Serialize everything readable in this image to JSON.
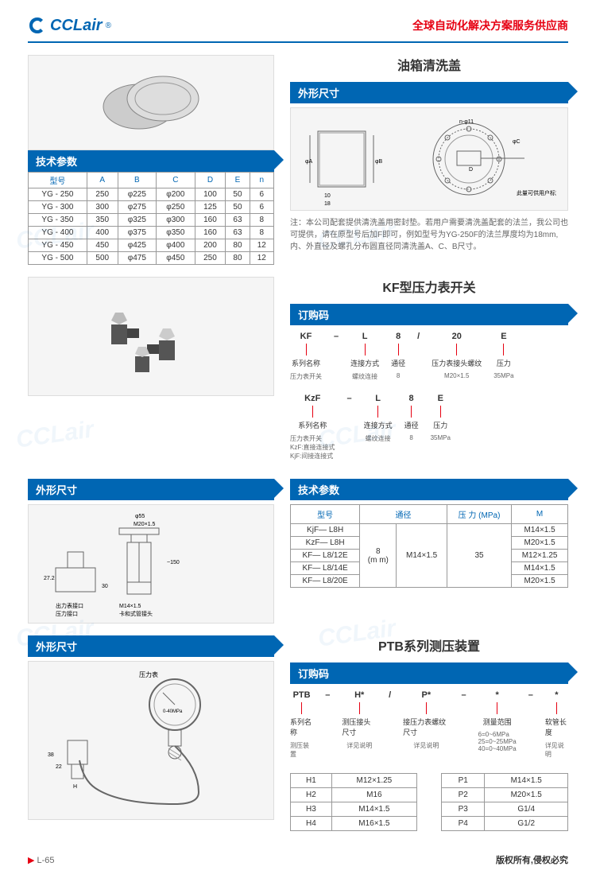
{
  "header": {
    "logo_text": "CCLair",
    "tagline": "全球自动化解决方案服务供应商"
  },
  "section1": {
    "title": "油箱清洗盖",
    "dim_header": "外形尺寸",
    "tech_header": "技术参数",
    "table": {
      "headers": [
        "型号",
        "A",
        "B",
        "C",
        "D",
        "E",
        "n"
      ],
      "rows": [
        [
          "YG - 250",
          "250",
          "φ225",
          "φ200",
          "100",
          "50",
          "6"
        ],
        [
          "YG - 300",
          "300",
          "φ275",
          "φ250",
          "125",
          "50",
          "6"
        ],
        [
          "YG - 350",
          "350",
          "φ325",
          "φ300",
          "160",
          "63",
          "8"
        ],
        [
          "YG - 400",
          "400",
          "φ375",
          "φ350",
          "160",
          "63",
          "8"
        ],
        [
          "YG - 450",
          "450",
          "φ425",
          "φ400",
          "200",
          "80",
          "12"
        ],
        [
          "YG - 500",
          "500",
          "φ475",
          "φ450",
          "250",
          "80",
          "12"
        ]
      ]
    },
    "note": "注：本公司配套提供清洗盖用密封垫。若用户需要清洗盖配套的法兰，我公司也可提供，请在原型号后加F即可，例如型号为YG-250F的法兰厚度均为18mm,内、外直径及螺孔分布圆直径同清洗盖A、C、B尺寸。"
  },
  "section2": {
    "title": "KF型压力表开关",
    "order_header": "订购码",
    "dim_header": "外形尺寸",
    "tech_header": "技术参数",
    "order1": {
      "cols": [
        "KF",
        "–",
        "L",
        "8",
        "/",
        "20",
        "E"
      ],
      "labels": [
        "系列名称",
        "",
        "连接方式",
        "通径",
        "",
        "压力表接头螺纹",
        "压力"
      ],
      "subs": [
        "压力表开关",
        "",
        "螺纹连接",
        "8",
        "",
        "M20×1.5",
        "35MPa"
      ]
    },
    "order2": {
      "cols": [
        "KzF",
        "–",
        "L",
        "8",
        "E"
      ],
      "labels": [
        "系列名称",
        "",
        "连接方式",
        "通径",
        "压力"
      ],
      "subs": [
        "压力表开关\nKzF:直接连接式\nKjF:间接连接式",
        "",
        "螺纹连接",
        "8",
        "35MPa"
      ]
    },
    "spec_table": {
      "headers": [
        "型号",
        "通径",
        "压 力 (MPa)",
        "M"
      ],
      "rows": [
        [
          "KjF— L8H",
          "",
          "35",
          "M14×1.5"
        ],
        [
          "KzF— L8H",
          "",
          "",
          "M20×1.5"
        ],
        [
          "KF— L8/12E",
          "8\n(m m)",
          "M14×1.5",
          "M12×1.25"
        ],
        [
          "KF— L8/14E",
          "",
          "",
          "M14×1.5"
        ],
        [
          "KF— L8/20E",
          "",
          "",
          "M20×1.5"
        ]
      ],
      "dia_val": "8\n(m m)",
      "thread_val": "M14×1.5",
      "press_val": "35"
    }
  },
  "section3": {
    "title": "PTB系列测压装置",
    "dim_header": "外形尺寸",
    "order_header": "订购码",
    "order": {
      "cols": [
        "PTB",
        "–",
        "H*",
        "/",
        "P*",
        "–",
        "*",
        "–",
        "*"
      ],
      "labels": [
        "系列名称",
        "",
        "测压接头尺寸",
        "",
        "接压力表螺纹尺寸",
        "",
        "测量范围",
        "",
        "软管长度"
      ],
      "subs": [
        "测压装置",
        "",
        "详见说明",
        "",
        "详见说明",
        "",
        "6=0~6MPa\n25=0~25MPa\n40=0~40MPa",
        "",
        "详见说明"
      ]
    },
    "h_table": {
      "rows": [
        [
          "H1",
          "M12×1.25"
        ],
        [
          "H2",
          "M16"
        ],
        [
          "H3",
          "M14×1.5"
        ],
        [
          "H4",
          "M16×1.5"
        ]
      ]
    },
    "p_table": {
      "rows": [
        [
          "P1",
          "M14×1.5"
        ],
        [
          "P2",
          "M20×1.5"
        ],
        [
          "P3",
          "G1/4"
        ],
        [
          "P4",
          "G1/2"
        ]
      ]
    },
    "gauge_label": "压力表",
    "gauge_range": "0-40MPa"
  },
  "footer": {
    "page": "L-65",
    "copyright": "版权所有,侵权必究"
  },
  "colors": {
    "brand": "#0066b3",
    "accent": "#e60012"
  }
}
